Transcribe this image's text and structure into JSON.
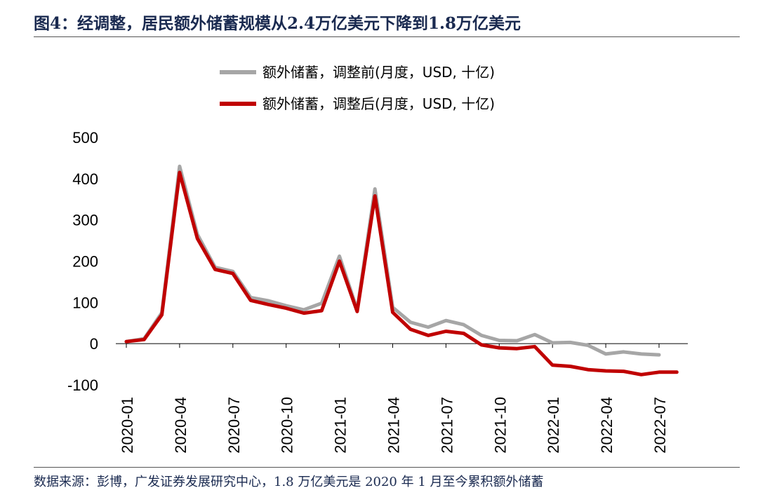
{
  "header": {
    "title": "图4：经调整，居民额外储蓄规模从2.4万亿美元下降到1.8万亿美元"
  },
  "footer": {
    "source": "数据来源：彭博，广发证券发展研究中心，1.8 万亿美元是 2020 年 1 月至今累积额外储蓄"
  },
  "chart_data": {
    "type": "line",
    "ylim": [
      -100,
      500
    ],
    "yticks": [
      "500",
      "400",
      "300",
      "200",
      "100",
      "0",
      "-100"
    ],
    "xticks": [
      "2020-01",
      "2020-04",
      "2020-07",
      "2020-10",
      "2021-01",
      "2021-04",
      "2021-07",
      "2021-10",
      "2022-01",
      "2022-04",
      "2022-07"
    ],
    "legend_position": "top-center",
    "grid": false,
    "series": [
      {
        "name": "额外储蓄，调整前(月度，USD, 十亿)",
        "color": "#a6a6a6",
        "start": "2020-01",
        "values": [
          5,
          12,
          75,
          430,
          265,
          185,
          175,
          112,
          104,
          92,
          82,
          98,
          212,
          82,
          375,
          88,
          52,
          40,
          56,
          46,
          20,
          8,
          7,
          22,
          2,
          3,
          -4,
          -25,
          -20,
          -25,
          -27
        ]
      },
      {
        "name": "额外储蓄，调整后(月度，USD, 十亿)",
        "color": "#c00000",
        "start": "2020-01",
        "values": [
          5,
          10,
          70,
          415,
          255,
          180,
          170,
          105,
          95,
          86,
          74,
          80,
          200,
          78,
          358,
          76,
          35,
          20,
          30,
          25,
          -3,
          -10,
          -12,
          -7,
          -52,
          -55,
          -63,
          -66,
          -67,
          -75,
          -69,
          -69
        ]
      }
    ]
  }
}
